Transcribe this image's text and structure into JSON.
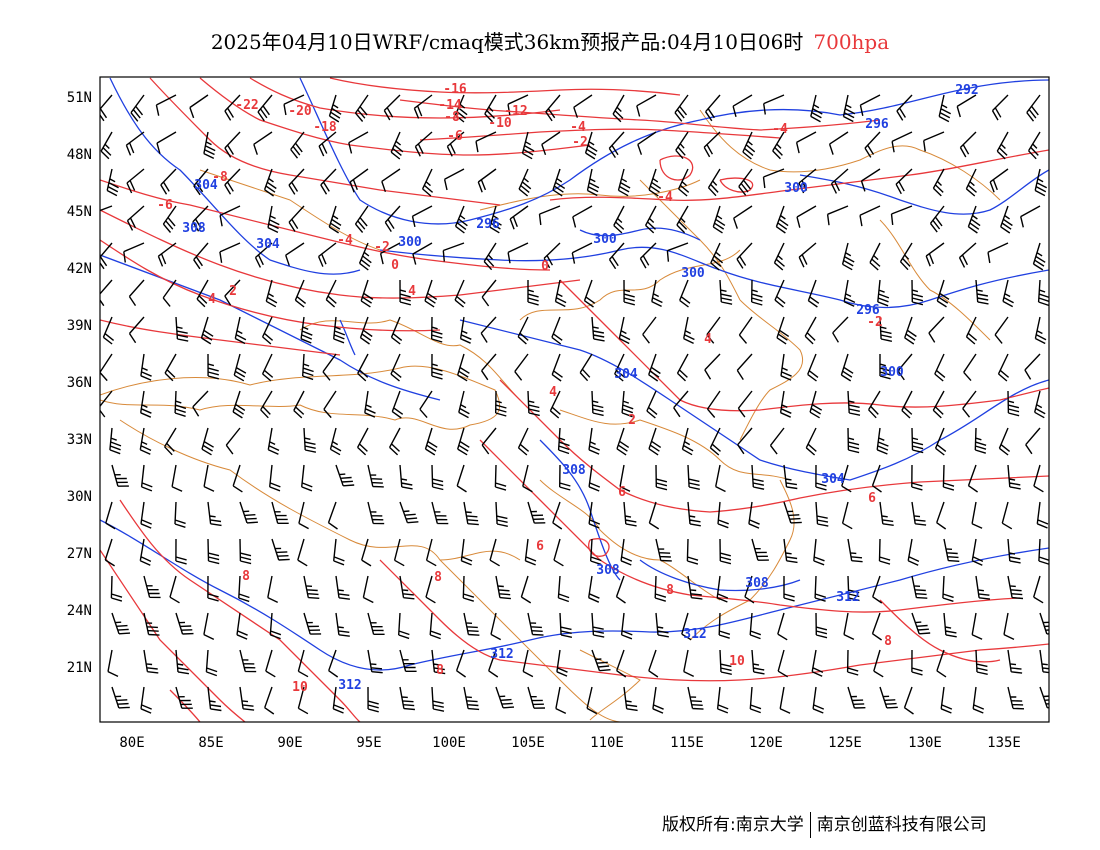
{
  "title": {
    "main": "2025年04月10日WRF/cmaq模式36km预报产品:04月10日06时",
    "level": "700hpa"
  },
  "map": {
    "lat_labels": [
      "51N",
      "48N",
      "45N",
      "42N",
      "39N",
      "36N",
      "33N",
      "30N",
      "27N",
      "24N",
      "21N"
    ],
    "lon_labels": [
      "80E",
      "85E",
      "90E",
      "95E",
      "100E",
      "105E",
      "110E",
      "115E",
      "120E",
      "125E",
      "130E",
      "135E"
    ],
    "height_labels": [
      "292",
      "296",
      "300",
      "300",
      "300",
      "300",
      "296",
      "296",
      "300",
      "304",
      "304",
      "304",
      "304",
      "308",
      "308",
      "308",
      "308",
      "312",
      "312",
      "312",
      "312"
    ],
    "temp_labels": [
      "-22",
      "-20",
      "-18",
      "-16",
      "-14",
      "-12",
      "-10",
      "-8",
      "-8",
      "-6",
      "-6",
      "-4",
      "-4",
      "-4",
      "-2",
      "-2",
      "-2",
      "-4",
      "0",
      "0",
      "2",
      "4",
      "4",
      "4",
      "4",
      "2",
      "6",
      "6",
      "6",
      "8",
      "8",
      "8",
      "8",
      "8",
      "10",
      "10"
    ],
    "colors": {
      "height_contour": "#2040e0",
      "temperature_contour": "#e8383b",
      "border": "#d88a3a",
      "wind_barb": "#000000"
    }
  },
  "footer": {
    "left": "版权所有:南京大学",
    "right": "南京创蓝科技有限公司"
  }
}
